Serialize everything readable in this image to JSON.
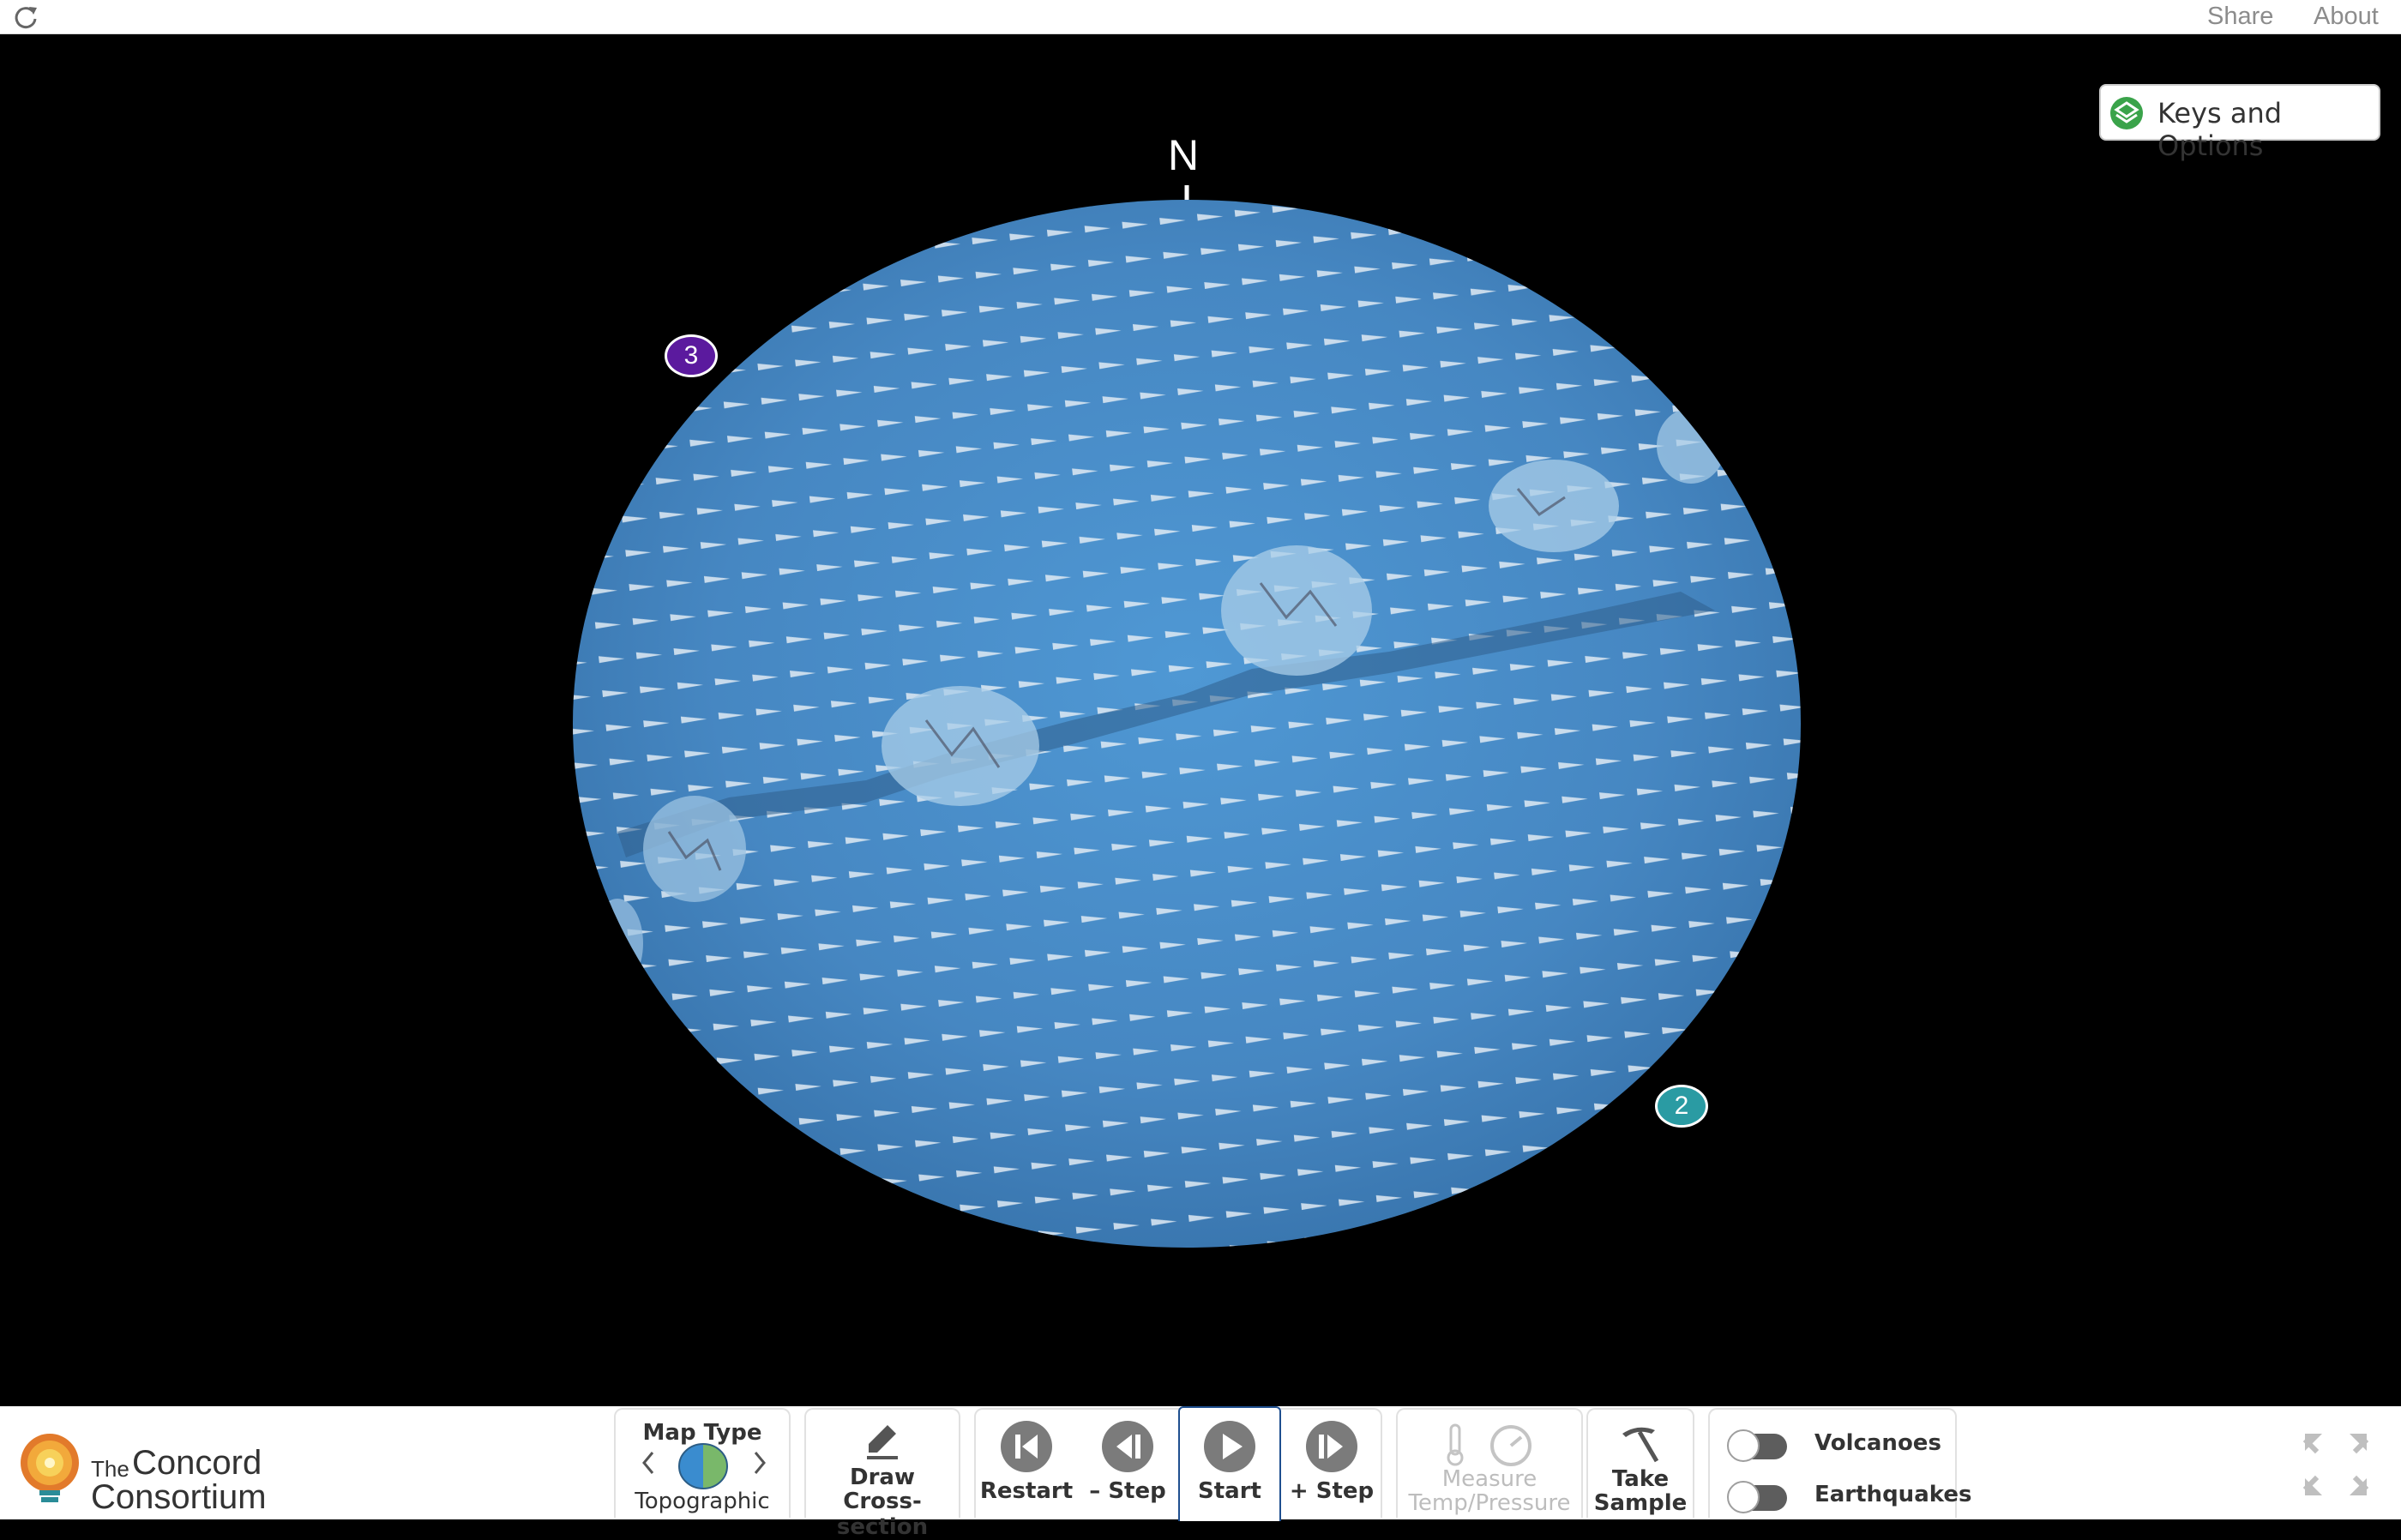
{
  "topbar": {
    "share": "Share",
    "about": "About"
  },
  "viewport": {
    "compass_label": "N",
    "markers": [
      {
        "label": "3",
        "color": "#5b1a9e"
      },
      {
        "label": "2",
        "color": "#2a9ba3"
      }
    ],
    "keys_options_label": "Keys and Options",
    "globe_color": "#4a8bc6"
  },
  "toolbar": {
    "logo": {
      "the": "The",
      "concord": "Concord",
      "consortium": "Consortium"
    },
    "map_type": {
      "title": "Map Type",
      "value": "Topographic"
    },
    "draw": {
      "line1": "Draw",
      "line2": "Cross-section"
    },
    "restart": "Restart",
    "step_back": "– Step",
    "start": "Start",
    "step_forward": "+ Step",
    "measure": {
      "line1": "Measure",
      "line2": "Temp/Pressure"
    },
    "sample": {
      "line1": "Take",
      "line2": "Sample"
    },
    "volcanoes": "Volcanoes",
    "earthquakes": "Earthquakes"
  }
}
